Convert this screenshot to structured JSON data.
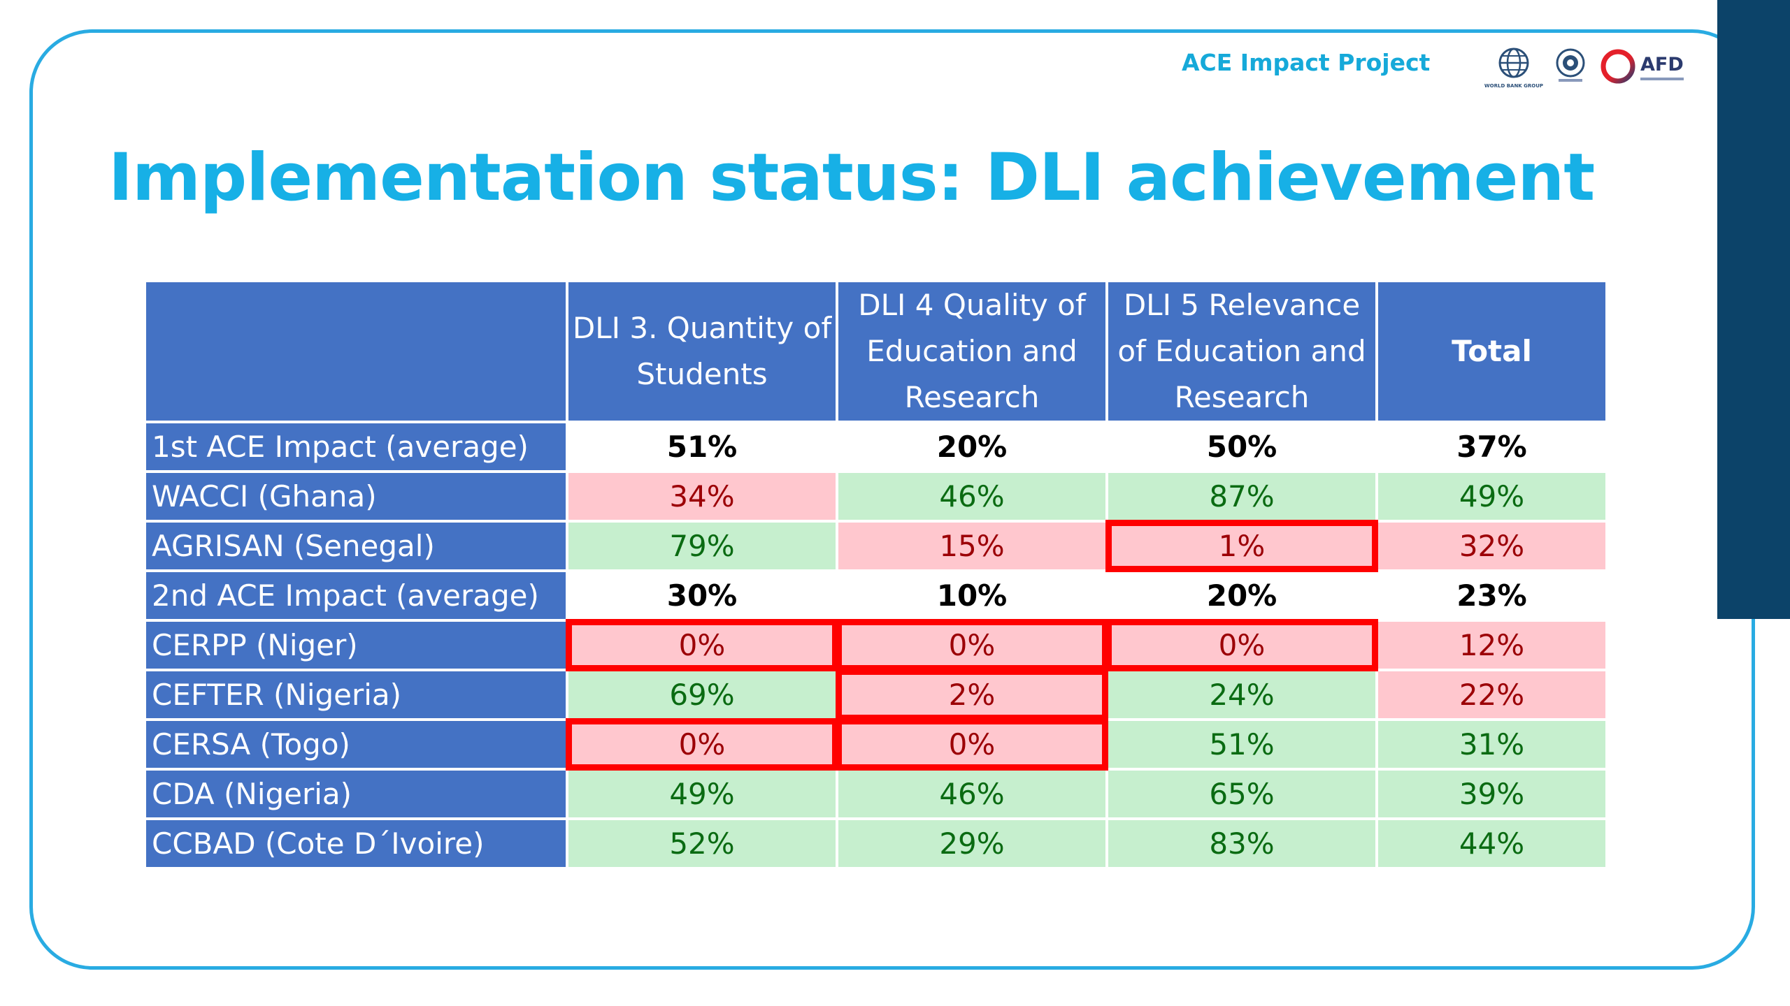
{
  "header": {
    "project_label": "ACE Impact Project",
    "logos": [
      {
        "icon": "world-bank-globe-icon",
        "caption": "WORLD BANK GROUP"
      },
      {
        "icon": "association-seal-icon"
      },
      {
        "icon": "afd-ring-icon",
        "text": "AFD"
      }
    ]
  },
  "title": "Implementation status: DLI achievement",
  "table": {
    "headers": [
      "",
      "DLI 3. Quantity of Students",
      "DLI 4 Quality of Education and Research",
      "DLI 5 Relevance of Education and Research",
      "Total"
    ],
    "rows": [
      {
        "label": "1st ACE Impact (average)",
        "cells": [
          {
            "value": "51%",
            "status": "avg",
            "flagged": false
          },
          {
            "value": "20%",
            "status": "avg",
            "flagged": false
          },
          {
            "value": "50%",
            "status": "avg",
            "flagged": false
          },
          {
            "value": "37%",
            "status": "avg",
            "flagged": false
          }
        ]
      },
      {
        "label": "WACCI (Ghana)",
        "cells": [
          {
            "value": "34%",
            "status": "bad",
            "flagged": false
          },
          {
            "value": "46%",
            "status": "good",
            "flagged": false
          },
          {
            "value": "87%",
            "status": "good",
            "flagged": false
          },
          {
            "value": "49%",
            "status": "good",
            "flagged": false
          }
        ]
      },
      {
        "label": "AGRISAN (Senegal)",
        "cells": [
          {
            "value": "79%",
            "status": "good",
            "flagged": false
          },
          {
            "value": "15%",
            "status": "bad",
            "flagged": false
          },
          {
            "value": "1%",
            "status": "bad",
            "flagged": true
          },
          {
            "value": "32%",
            "status": "bad",
            "flagged": false
          }
        ]
      },
      {
        "label": "2nd ACE Impact (average)",
        "cells": [
          {
            "value": "30%",
            "status": "avg",
            "flagged": false
          },
          {
            "value": "10%",
            "status": "avg",
            "flagged": false
          },
          {
            "value": "20%",
            "status": "avg",
            "flagged": false
          },
          {
            "value": "23%",
            "status": "avg",
            "flagged": false
          }
        ]
      },
      {
        "label": "CERPP (Niger)",
        "cells": [
          {
            "value": "0%",
            "status": "bad",
            "flagged": true
          },
          {
            "value": "0%",
            "status": "bad",
            "flagged": true
          },
          {
            "value": "0%",
            "status": "bad",
            "flagged": true
          },
          {
            "value": "12%",
            "status": "bad",
            "flagged": false
          }
        ]
      },
      {
        "label": "CEFTER (Nigeria)",
        "cells": [
          {
            "value": "69%",
            "status": "good",
            "flagged": false
          },
          {
            "value": "2%",
            "status": "bad",
            "flagged": true
          },
          {
            "value": "24%",
            "status": "good",
            "flagged": false
          },
          {
            "value": "22%",
            "status": "bad",
            "flagged": false
          }
        ]
      },
      {
        "label": "CERSA (Togo)",
        "cells": [
          {
            "value": "0%",
            "status": "bad",
            "flagged": true
          },
          {
            "value": "0%",
            "status": "bad",
            "flagged": true
          },
          {
            "value": "51%",
            "status": "good",
            "flagged": false
          },
          {
            "value": "31%",
            "status": "good",
            "flagged": false
          }
        ]
      },
      {
        "label": "CDA (Nigeria)",
        "cells": [
          {
            "value": "49%",
            "status": "good",
            "flagged": false
          },
          {
            "value": "46%",
            "status": "good",
            "flagged": false
          },
          {
            "value": "65%",
            "status": "good",
            "flagged": false
          },
          {
            "value": "39%",
            "status": "good",
            "flagged": false
          }
        ]
      },
      {
        "label": "CCBAD (Cote D´Ivoire)",
        "cells": [
          {
            "value": "52%",
            "status": "good",
            "flagged": false
          },
          {
            "value": "29%",
            "status": "good",
            "flagged": false
          },
          {
            "value": "83%",
            "status": "good",
            "flagged": false
          },
          {
            "value": "44%",
            "status": "good",
            "flagged": false
          }
        ]
      }
    ]
  },
  "colors": {
    "title": "#17b0e6",
    "frame": "#29abe2",
    "side_bar": "#0c4369",
    "header_fill": "#4472c4",
    "good_fill": "#c6efce",
    "good_text": "#0a6b12",
    "bad_fill": "#ffc7ce",
    "bad_text": "#9c0006",
    "flag_outline": "#ff0000"
  }
}
